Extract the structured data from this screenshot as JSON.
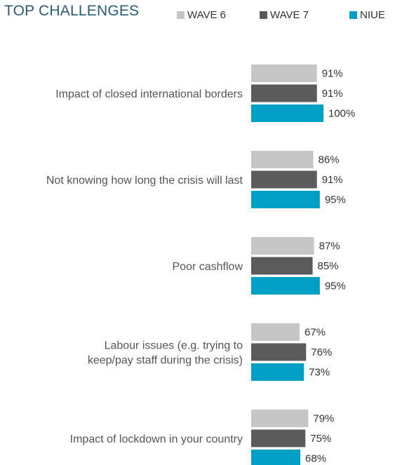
{
  "chart_data": {
    "type": "bar",
    "orientation": "horizontal",
    "title": "TOP CHALLENGES",
    "categories": [
      [
        "Impact of closed international borders"
      ],
      [
        "Not knowing how long the crisis will last"
      ],
      [
        "Poor cashflow"
      ],
      [
        "Labour issues  (e.g. trying to",
        "keep/pay staff during the crisis)"
      ],
      [
        "Impact of lockdown in your country"
      ]
    ],
    "series": [
      {
        "name": "WAVE 6",
        "color": "#c6c6c6",
        "values": [
          91,
          86,
          87,
          67,
          79
        ]
      },
      {
        "name": "WAVE 7",
        "color": "#5b5b5b",
        "values": [
          91,
          91,
          85,
          76,
          75
        ]
      },
      {
        "name": "NIUE",
        "color": "#009fc6",
        "values": [
          100,
          95,
          95,
          73,
          68
        ]
      }
    ],
    "value_suffix": "%",
    "xlim": [
      0,
      100
    ],
    "grid": false,
    "legend_position": "top"
  }
}
